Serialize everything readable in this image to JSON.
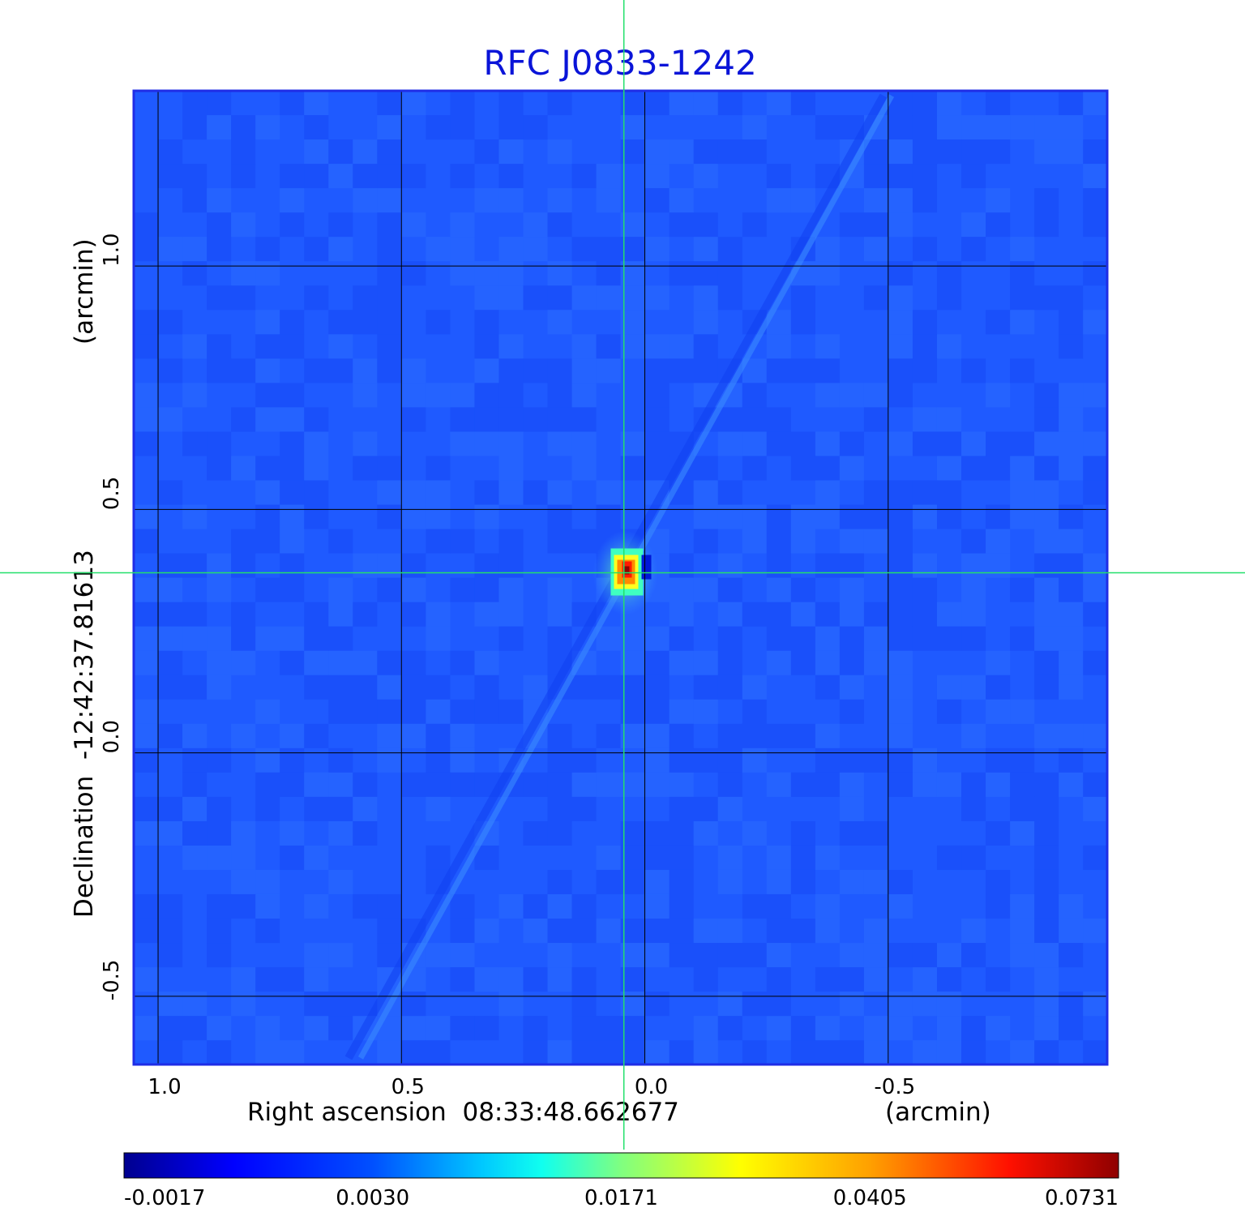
{
  "chart_data": {
    "type": "heatmap",
    "title": "RFC J0833-1242",
    "xlabel": "Right ascension  08:33:48.662677",
    "xunit": "(arcmin)",
    "ylabel": "Declination  -12:42:37.81613",
    "yunit": "(arcmin)",
    "xlim": [
      1.05,
      -0.95
    ],
    "ylim": [
      -0.64,
      1.36
    ],
    "x_ticks": [
      {
        "value": 1.0,
        "label": "1.0"
      },
      {
        "value": 0.5,
        "label": "0.5"
      },
      {
        "value": 0.0,
        "label": "0.0"
      },
      {
        "value": -0.5,
        "label": "-0.5"
      }
    ],
    "y_ticks": [
      {
        "value": 1.0,
        "label": "1.0"
      },
      {
        "value": 0.5,
        "label": "0.5"
      },
      {
        "value": 0.0,
        "label": "0.0"
      },
      {
        "value": -0.5,
        "label": "-0.5"
      }
    ],
    "grid": true,
    "crosshair": {
      "x": 0.043,
      "y": 0.37
    },
    "source_peak": {
      "x": 0.04,
      "y": 0.37,
      "value": 0.0731
    },
    "colorbar": {
      "colormap": "jet",
      "tick_labels": [
        "-0.0017",
        "0.0030",
        "0.0171",
        "0.0405",
        "0.0731"
      ]
    },
    "colors": {
      "title": "#0a14d8",
      "frame": "#1f2de6",
      "background_blue": "#1f5aff",
      "grid": "#000000",
      "crosshair": "#22e06a"
    }
  }
}
